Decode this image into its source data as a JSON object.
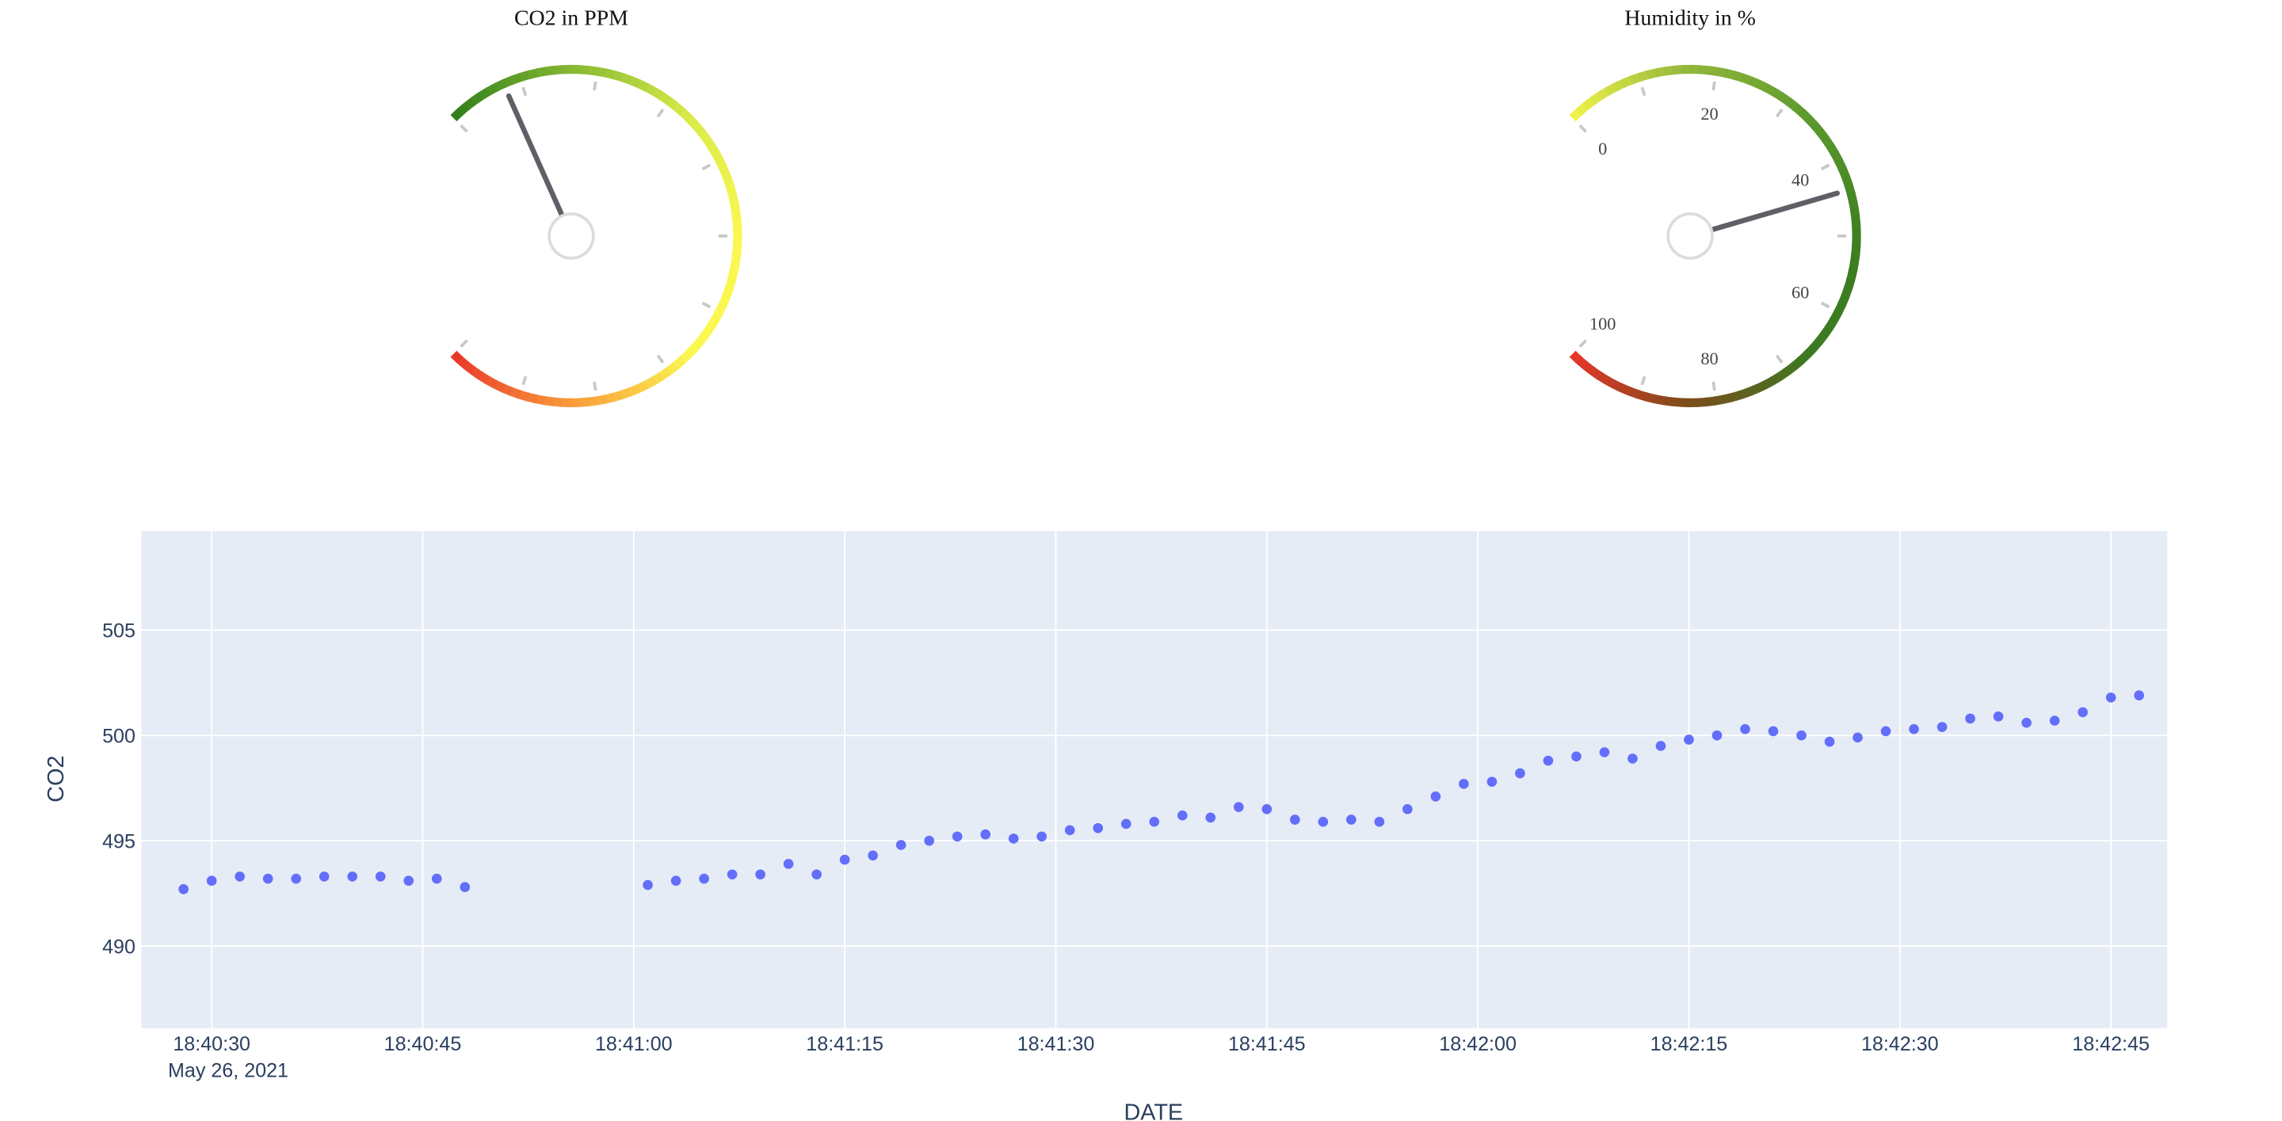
{
  "gauges": [
    {
      "title": "CO2 in PPM",
      "value": 493,
      "range": [
        400,
        1600
      ],
      "show_tick_labels": false,
      "tick_labels": [],
      "colorscale": [
        "#2e7d1a",
        "#86b832",
        "#d9ec48",
        "#fbf751",
        "#fbf751",
        "#f99b3a",
        "#e8352a"
      ],
      "needle_color": "#5f6066"
    },
    {
      "title": "Humidity in %",
      "value": 44,
      "range": [
        0,
        100
      ],
      "show_tick_labels": true,
      "tick_labels": [
        "0",
        "20",
        "40",
        "60",
        "80",
        "100"
      ],
      "colorscale": [
        "#f2f349",
        "#91b63a",
        "#5c9a2d",
        "#3e7f22",
        "#3b7a21",
        "#7b4d1b",
        "#e8352a"
      ],
      "needle_color": "#5f6066"
    }
  ],
  "chart_data": {
    "type": "scatter",
    "title": "",
    "xlabel": "DATE",
    "ylabel": "CO2",
    "date_label": "May 26, 2021",
    "x_tick_labels": [
      "18:40:30",
      "18:40:45",
      "18:41:00",
      "18:41:15",
      "18:41:30",
      "18:41:45",
      "18:42:00",
      "18:42:15",
      "18:42:30",
      "18:42:45"
    ],
    "y_ticks": [
      490,
      495,
      500,
      505
    ],
    "xlim": [
      "18:40:25",
      "18:42:49"
    ],
    "ylim": [
      486.1,
      509.7
    ],
    "grid": true,
    "marker_color": "#636efa",
    "plot_bg": "#e5ecf6",
    "series": [
      {
        "x": [
          "18:40:28",
          "18:40:30",
          "18:40:32",
          "18:40:34",
          "18:40:36",
          "18:40:38",
          "18:40:40",
          "18:40:42",
          "18:40:44",
          "18:40:46",
          "18:40:48",
          "18:41:01",
          "18:41:03",
          "18:41:05",
          "18:41:07",
          "18:41:09",
          "18:41:11",
          "18:41:13",
          "18:41:15",
          "18:41:17",
          "18:41:19",
          "18:41:21",
          "18:41:23",
          "18:41:25",
          "18:41:27",
          "18:41:29",
          "18:41:31",
          "18:41:33",
          "18:41:35",
          "18:41:37",
          "18:41:39",
          "18:41:41",
          "18:41:43",
          "18:41:45",
          "18:41:47",
          "18:41:49",
          "18:41:51",
          "18:41:53",
          "18:41:55",
          "18:41:57",
          "18:41:59",
          "18:42:01",
          "18:42:03",
          "18:42:05",
          "18:42:07",
          "18:42:09",
          "18:42:11",
          "18:42:13",
          "18:42:15",
          "18:42:17",
          "18:42:19",
          "18:42:21",
          "18:42:23",
          "18:42:25",
          "18:42:27",
          "18:42:29",
          "18:42:31",
          "18:42:33",
          "18:42:35",
          "18:42:37",
          "18:42:39",
          "18:42:41",
          "18:42:43",
          "18:42:45",
          "18:42:47"
        ],
        "y": [
          492.7,
          493.1,
          493.3,
          493.2,
          493.2,
          493.3,
          493.3,
          493.3,
          493.1,
          493.2,
          492.8,
          492.9,
          493.1,
          493.2,
          493.4,
          493.4,
          493.9,
          493.4,
          494.1,
          494.3,
          494.8,
          495.0,
          495.2,
          495.3,
          495.1,
          495.2,
          495.5,
          495.6,
          495.8,
          495.9,
          496.2,
          496.1,
          496.6,
          496.5,
          496.0,
          495.9,
          496.0,
          495.9,
          496.5,
          497.1,
          497.7,
          497.8,
          498.2,
          498.8,
          499.0,
          499.2,
          498.9,
          499.5,
          499.8,
          500.0,
          500.3,
          500.2,
          500.0,
          499.7,
          499.9,
          500.2,
          500.3,
          500.4,
          500.8,
          500.9,
          500.6,
          500.7,
          501.1,
          501.8,
          501.9
        ]
      }
    ]
  }
}
